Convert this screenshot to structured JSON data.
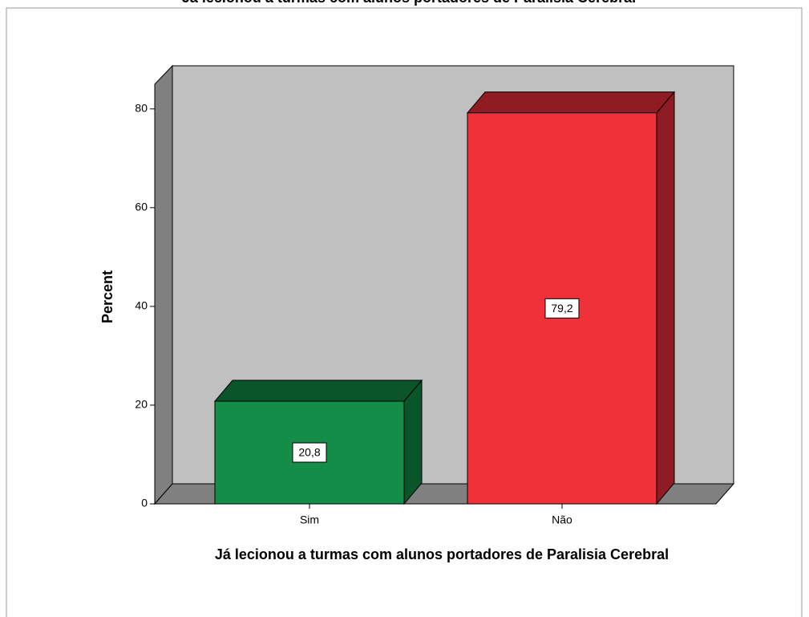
{
  "chart_data": {
    "type": "bar3d",
    "title": "Já lecionou a turmas com alunos portadores de Paralisia Cerebral",
    "x_label": "Já lecionou a turmas com alunos portadores de Paralisia Cerebral",
    "y_label": "Percent",
    "categories": [
      "Sim",
      "Não"
    ],
    "values": [
      20.8,
      79.2
    ],
    "value_labels": [
      "20,8",
      "79,2"
    ],
    "colors": [
      "#138d48",
      "#f0313a"
    ],
    "shade_colors": [
      "#0b552b",
      "#8f1c22"
    ],
    "ylim": [
      0,
      85
    ],
    "yticks": [
      0,
      20,
      40,
      60,
      80
    ]
  }
}
